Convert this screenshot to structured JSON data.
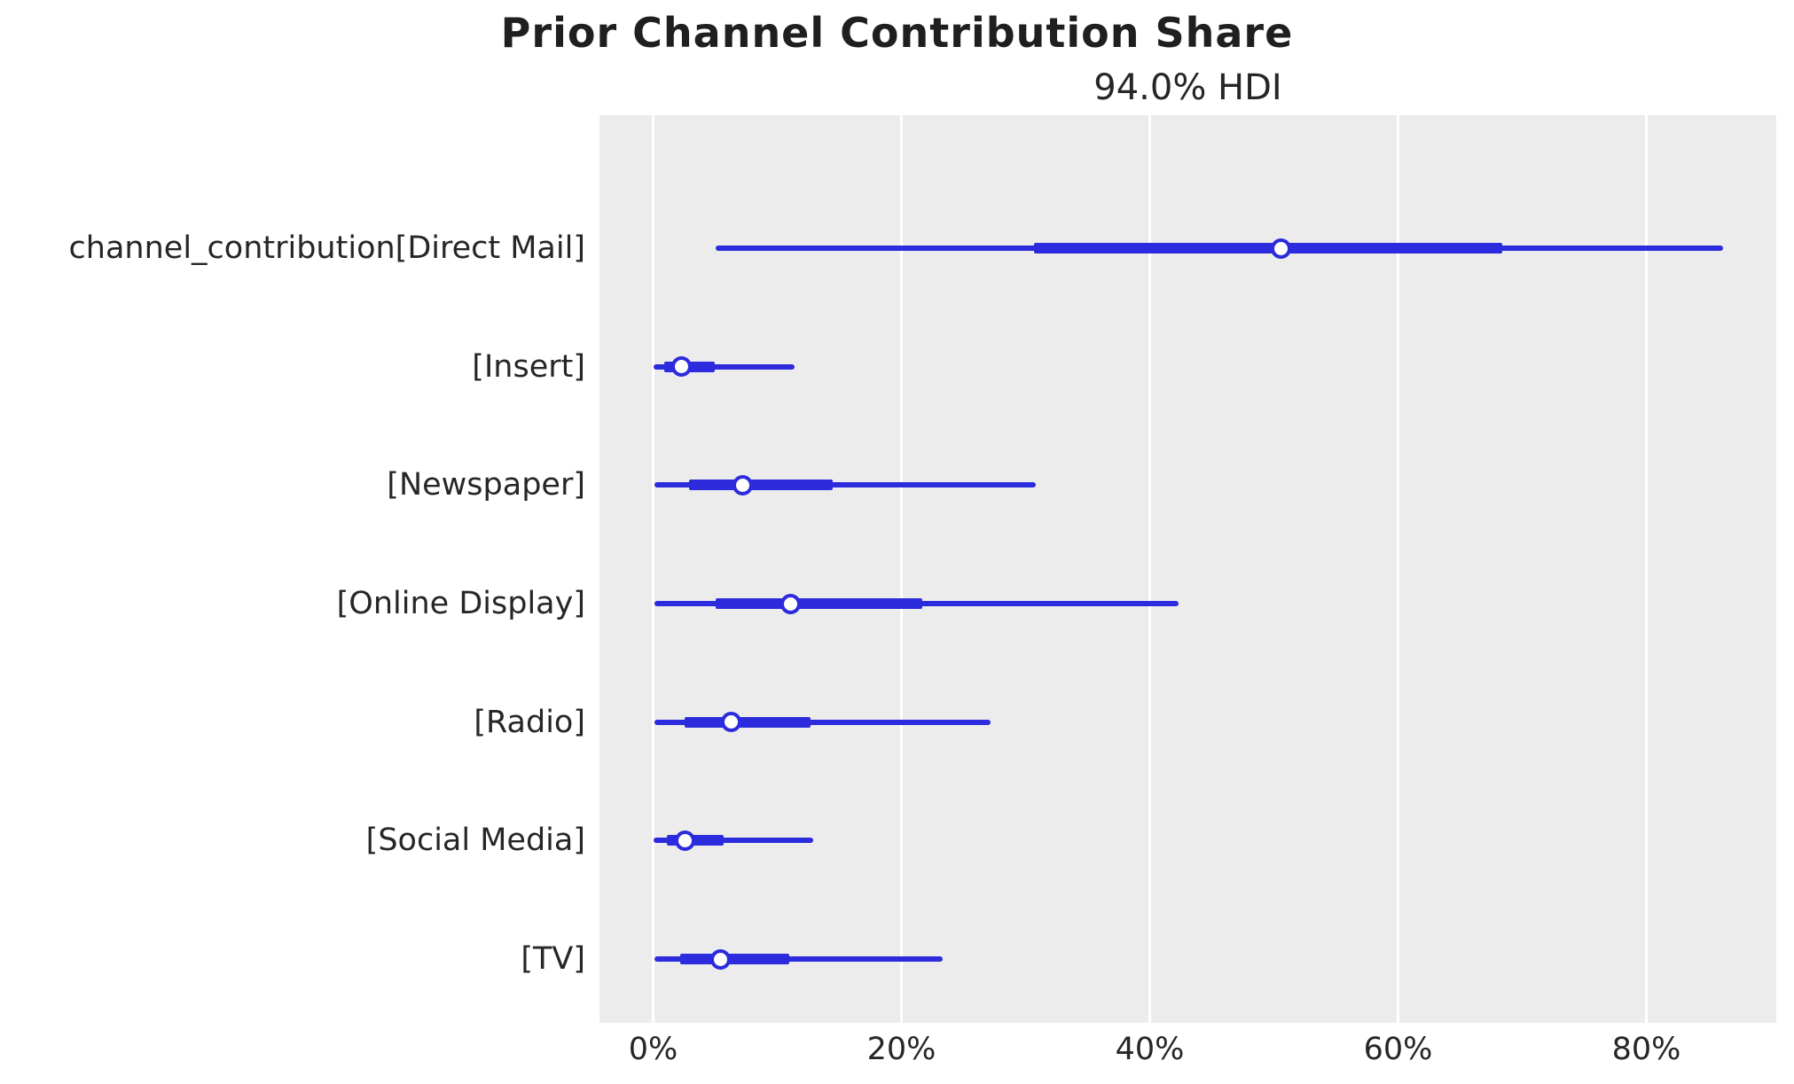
{
  "chart_data": {
    "type": "forest",
    "title": "Prior Channel Contribution Share",
    "subtitle": "94.0% HDI",
    "hdi_prob": 0.94,
    "xlabel": "",
    "x_unit": "percent",
    "xlim": [
      -4.3,
      90.5
    ],
    "grid": "vertical-white-on-gray",
    "x_ticks": [
      {
        "label": "0%",
        "value": 0
      },
      {
        "label": "20%",
        "value": 20
      },
      {
        "label": "40%",
        "value": 40
      },
      {
        "label": "60%",
        "value": 60
      },
      {
        "label": "80%",
        "value": 80
      }
    ],
    "rows": [
      {
        "label": "channel_contribution[Direct Mail]",
        "hdi_low": 5.0,
        "q1": 30.7,
        "median": 50.6,
        "q3": 68.4,
        "hdi_high": 86.2
      },
      {
        "label": "[Insert]",
        "hdi_low": 0.0,
        "q1": 0.9,
        "median": 2.3,
        "q3": 5.0,
        "hdi_high": 11.4
      },
      {
        "label": "[Newspaper]",
        "hdi_low": 0.1,
        "q1": 2.9,
        "median": 7.2,
        "q3": 14.5,
        "hdi_high": 30.8
      },
      {
        "label": "[Online Display]",
        "hdi_low": 0.1,
        "q1": 5.0,
        "median": 11.1,
        "q3": 21.7,
        "hdi_high": 42.3
      },
      {
        "label": "[Radio]",
        "hdi_low": 0.1,
        "q1": 2.5,
        "median": 6.3,
        "q3": 12.7,
        "hdi_high": 27.2
      },
      {
        "label": "[Social Media]",
        "hdi_low": 0.0,
        "q1": 1.1,
        "median": 2.6,
        "q3": 5.7,
        "hdi_high": 12.9
      },
      {
        "label": "[TV]",
        "hdi_low": 0.1,
        "q1": 2.2,
        "median": 5.4,
        "q3": 11.0,
        "hdi_high": 23.3
      }
    ],
    "colors": {
      "line": "#2c2bdd",
      "marker_face": "#ffffff",
      "axes_bg": "#ececec",
      "grid": "#ffffff",
      "text": "#262626"
    },
    "legend": "none",
    "marker": "open-circle"
  }
}
